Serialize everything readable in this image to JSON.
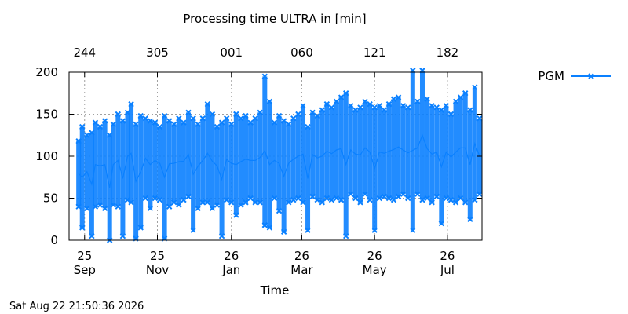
{
  "chart_data": {
    "type": "line",
    "title": "Processing time ULTRA in [min]",
    "xlabel": "Time",
    "ylabel": "",
    "ylim": [
      0,
      200
    ],
    "y_ticks": [
      0,
      50,
      100,
      150,
      200
    ],
    "x_ticks": [
      {
        "day": "25",
        "month": "Sep"
      },
      {
        "day": "25",
        "month": "Nov"
      },
      {
        "day": "26",
        "month": "Jan"
      },
      {
        "day": "26",
        "month": "Mar"
      },
      {
        "day": "26",
        "month": "May"
      },
      {
        "day": "26",
        "month": "Jul"
      }
    ],
    "x2_ticks": [
      "244",
      "305",
      "001",
      "060",
      "121",
      "182"
    ],
    "grid": true,
    "legend_position": "top-right",
    "series": [
      {
        "name": "PGM",
        "color": "#0a80ff",
        "marker": "x",
        "x": [
          "2025-09-20",
          "2025-09-23",
          "2025-09-27",
          "2025-10-01",
          "2025-10-04",
          "2025-10-08",
          "2025-10-12",
          "2025-10-16",
          "2025-10-19",
          "2025-10-23",
          "2025-10-27",
          "2025-10-31",
          "2025-11-03",
          "2025-11-07",
          "2025-11-11",
          "2025-11-15",
          "2025-11-19",
          "2025-11-23",
          "2025-11-27",
          "2025-12-01",
          "2025-12-05",
          "2025-12-09",
          "2025-12-13",
          "2025-12-17",
          "2025-12-21",
          "2025-12-25",
          "2025-12-29",
          "2026-01-02",
          "2026-01-06",
          "2026-01-10",
          "2026-01-14",
          "2026-01-18",
          "2026-01-22",
          "2026-01-26",
          "2026-01-30",
          "2026-02-03",
          "2026-02-07",
          "2026-02-11",
          "2026-02-15",
          "2026-02-19",
          "2026-02-23",
          "2026-02-27",
          "2026-03-03",
          "2026-03-07",
          "2026-03-11",
          "2026-03-15",
          "2026-03-19",
          "2026-03-23",
          "2026-03-27",
          "2026-03-31",
          "2026-04-04",
          "2026-04-08",
          "2026-04-12",
          "2026-04-16",
          "2026-04-20",
          "2026-04-24",
          "2026-04-28",
          "2026-05-02",
          "2026-05-06",
          "2026-05-10",
          "2026-05-14",
          "2026-05-18",
          "2026-05-22",
          "2026-05-26",
          "2026-05-30",
          "2026-06-03",
          "2026-06-07",
          "2026-06-11",
          "2026-06-15",
          "2026-06-19",
          "2026-06-23",
          "2026-06-27",
          "2026-07-01",
          "2026-07-05",
          "2026-07-09",
          "2026-07-13",
          "2026-07-17",
          "2026-07-21",
          "2026-07-25",
          "2026-07-29",
          "2026-08-02",
          "2026-08-06",
          "2026-08-10",
          "2026-08-14",
          "2026-08-18",
          "2026-08-22"
        ],
        "y_min": [
          40,
          15,
          38,
          5,
          40,
          42,
          38,
          0,
          42,
          40,
          5,
          48,
          45,
          2,
          15,
          50,
          38,
          50,
          48,
          2,
          40,
          45,
          42,
          48,
          52,
          12,
          38,
          45,
          45,
          38,
          42,
          5,
          48,
          45,
          30,
          42,
          45,
          50,
          45,
          45,
          18,
          15,
          50,
          35,
          10,
          45,
          48,
          50,
          45,
          12,
          52,
          48,
          45,
          50,
          48,
          50,
          48,
          5,
          55,
          50,
          45,
          55,
          48,
          12,
          50,
          52,
          50,
          48,
          52,
          55,
          50,
          12,
          55,
          48,
          50,
          45,
          52,
          20,
          50,
          48,
          45,
          50,
          45,
          25,
          48,
          55
        ],
        "y_max": [
          118,
          135,
          125,
          128,
          140,
          135,
          142,
          125,
          138,
          150,
          142,
          152,
          162,
          138,
          148,
          145,
          142,
          140,
          135,
          148,
          142,
          138,
          145,
          140,
          152,
          145,
          138,
          145,
          162,
          150,
          135,
          140,
          145,
          138,
          150,
          145,
          148,
          140,
          145,
          152,
          195,
          165,
          140,
          148,
          142,
          138,
          145,
          150,
          160,
          135,
          152,
          148,
          155,
          162,
          158,
          165,
          170,
          175,
          160,
          155,
          158,
          165,
          162,
          158,
          160,
          155,
          162,
          168,
          170,
          160,
          158,
          202,
          165,
          202,
          168,
          160,
          158,
          155,
          160,
          150,
          165,
          170,
          175,
          155,
          182,
          145
        ]
      }
    ]
  },
  "footer": {
    "timestamp": "Sat Aug 22 21:50:36 2026"
  }
}
